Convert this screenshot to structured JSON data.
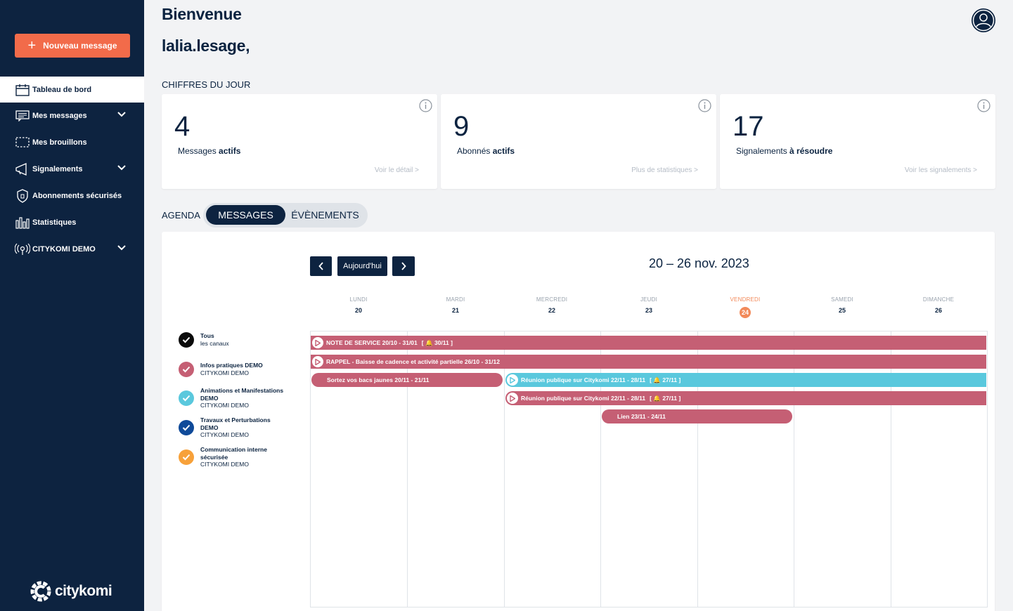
{
  "sidebar": {
    "new_message_label": "Nouveau message",
    "items": [
      {
        "label": "Tableau de bord",
        "icon": "calendar-icon",
        "active": true,
        "has_chevron": false
      },
      {
        "label": "Mes messages",
        "icon": "messages-icon",
        "active": false,
        "has_chevron": true
      },
      {
        "label": "Mes brouillons",
        "icon": "draft-icon",
        "active": false,
        "has_chevron": false
      },
      {
        "label": "Signalements",
        "icon": "megaphone-icon",
        "active": false,
        "has_chevron": true
      },
      {
        "label": "Abonnements sécurisés",
        "icon": "shield-icon",
        "active": false,
        "has_chevron": false
      },
      {
        "label": "Statistiques",
        "icon": "chart-icon",
        "active": false,
        "has_chevron": false
      },
      {
        "label": "CITYKOMI DEMO",
        "icon": "broadcast-icon",
        "active": false,
        "has_chevron": true
      }
    ],
    "logo_text": "citykomi"
  },
  "header": {
    "greeting": "Bienvenue",
    "username": "lalia.lesage,"
  },
  "stats": {
    "title": "CHIFFRES DU JOUR",
    "cards": [
      {
        "value": "4",
        "label_prefix": "Messages ",
        "label_bold": "actifs",
        "link": "Voir le détail >"
      },
      {
        "value": "9",
        "label_prefix": "Abonnés ",
        "label_bold": "actifs",
        "link": "Plus de statistiques >"
      },
      {
        "value": "17",
        "label_prefix": "Signalements ",
        "label_bold": "à résoudre",
        "link": "Voir les signalements >"
      }
    ]
  },
  "agenda": {
    "title": "AGENDA",
    "tab_messages": "MESSAGES",
    "tab_events": "ÉVÈNEMENTS",
    "today_label": "Aujourd'hui",
    "range": "20 – 26 nov. 2023",
    "days": [
      {
        "name": "LUNDI",
        "date": "20",
        "today": false
      },
      {
        "name": "MARDI",
        "date": "21",
        "today": false
      },
      {
        "name": "MERCREDI",
        "date": "22",
        "today": false
      },
      {
        "name": "JEUDI",
        "date": "23",
        "today": false
      },
      {
        "name": "VENDREDI",
        "date": "24",
        "today": true
      },
      {
        "name": "SAMEDI",
        "date": "25",
        "today": false
      },
      {
        "name": "DIMANCHE",
        "date": "26",
        "today": false
      }
    ],
    "channels": [
      {
        "title": "Tous",
        "subtitle": "les canaux",
        "color": "#0b0b0b"
      },
      {
        "title": "Infos pratiques DEMO",
        "subtitle": "CITYKOMI DEMO",
        "color": "#c55f74"
      },
      {
        "title": "Animations et Manifestations DEMO",
        "subtitle": "CITYKOMI DEMO",
        "color": "#5ac8dd"
      },
      {
        "title": "Travaux et Perturbations DEMO",
        "subtitle": "CITYKOMI DEMO",
        "color": "#0f4a99"
      },
      {
        "title": "Communication interne sécurisée",
        "subtitle": "CITYKOMI DEMO",
        "color": "#f7a13a"
      }
    ],
    "events": [
      {
        "text": "NOTE DE SERVICE 20/10 - 31/01",
        "notif": "30/11",
        "color": "#c55f74"
      },
      {
        "text": "RAPPEL - Baisse de cadence et activité partielle 26/10 - 31/12",
        "notif": "",
        "color": "#c55f74"
      },
      {
        "text": "Sortez vos bacs jaunes 20/11 - 21/11",
        "notif": "",
        "color": "#c55f74"
      },
      {
        "text": "Réunion publique sur Citykomi 22/11 - 28/11",
        "notif": "27/11",
        "color": "#5ac8dd"
      },
      {
        "text": "Réunion publique sur Citykomi 22/11 - 28/11",
        "notif": "27/11",
        "color": "#c55f74"
      },
      {
        "text": "Lien 23/11 - 24/11",
        "notif": "",
        "color": "#c55f74"
      }
    ]
  }
}
